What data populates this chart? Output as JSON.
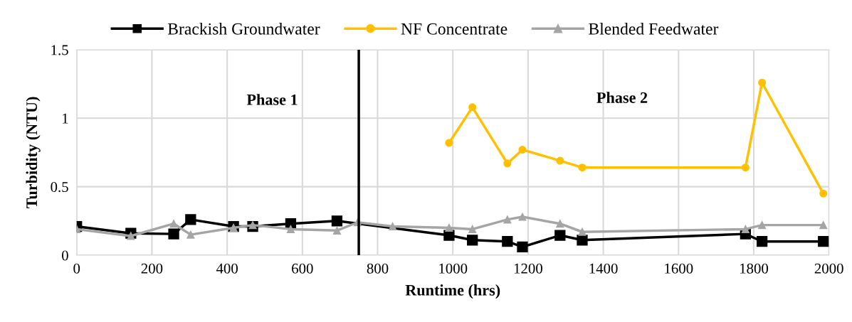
{
  "chart_data": {
    "type": "line",
    "xlabel": "Runtime (hrs)",
    "ylabel": "Turbidity (NTU)",
    "xlim": [
      0,
      2000
    ],
    "xticks": [
      0,
      200,
      400,
      600,
      800,
      1000,
      1200,
      1400,
      1600,
      1800,
      2000
    ],
    "ylim": [
      0,
      1.5
    ],
    "yticks": [
      0,
      0.5,
      1,
      1.5
    ],
    "grid": true,
    "legend": "top",
    "line_style": "solid",
    "series": [
      {
        "name": "Brackish Groundwater",
        "color": "#000000",
        "marker": "square",
        "x": [
          0,
          144,
          258,
          303,
          417,
          468,
          569,
          692,
          990,
          1052,
          1145,
          1185,
          1285,
          1344,
          1778,
          1822,
          1985
        ],
        "values": [
          0.21,
          0.16,
          0.155,
          0.26,
          0.21,
          0.21,
          0.23,
          0.25,
          0.145,
          0.11,
          0.1,
          0.06,
          0.145,
          0.11,
          0.155,
          0.1,
          0.1
        ]
      },
      {
        "name": "NF Concentrate",
        "color": "#ffc000",
        "marker": "circle",
        "x": [
          990,
          1052,
          1145,
          1185,
          1285,
          1344,
          1778,
          1822,
          1985
        ],
        "values": [
          0.82,
          1.08,
          0.67,
          0.77,
          0.69,
          0.64,
          0.64,
          1.26,
          0.45
        ]
      },
      {
        "name": "Blended Feedwater",
        "color": "#a5a5a5",
        "marker": "triangle",
        "x": [
          0,
          144,
          258,
          303,
          417,
          468,
          569,
          692,
          747,
          840,
          990,
          1052,
          1145,
          1185,
          1285,
          1344,
          1778,
          1822,
          1985
        ],
        "values": [
          0.19,
          0.14,
          0.23,
          0.15,
          0.2,
          0.22,
          0.19,
          0.18,
          0.24,
          0.21,
          0.2,
          0.19,
          0.26,
          0.28,
          0.23,
          0.17,
          0.19,
          0.22,
          0.22
        ]
      }
    ],
    "ref_lines": [
      {
        "axis": "x",
        "value": 750,
        "color": "#000000",
        "line_style": "solid"
      }
    ],
    "annotations": [
      "Phase 1",
      "Phase 2"
    ]
  }
}
